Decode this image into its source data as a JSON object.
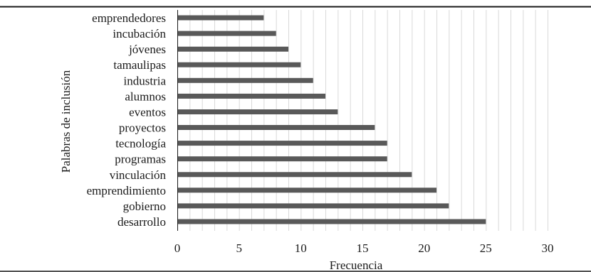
{
  "chart_data": {
    "type": "bar",
    "orientation": "horizontal",
    "categories": [
      "emprendedores",
      "incubación",
      "jóvenes",
      "tamaulipas",
      "industria",
      "alumnos",
      "eventos",
      "proyectos",
      "tecnología",
      "programas",
      "vinculación",
      "emprendimiento",
      "gobierno",
      "desarrollo"
    ],
    "values": [
      7,
      8,
      9,
      10,
      11,
      12,
      13,
      16,
      17,
      17,
      19,
      21,
      22,
      25
    ],
    "xlabel": "Frecuencia",
    "ylabel": "Palabras de inclusión",
    "xlim": [
      0,
      30
    ],
    "xticks": [
      "0",
      "5",
      "10",
      "15",
      "20",
      "25",
      "30"
    ],
    "minor_gridlines": true,
    "bar_color": "#595959",
    "grid_color": "#d9d9d9"
  }
}
